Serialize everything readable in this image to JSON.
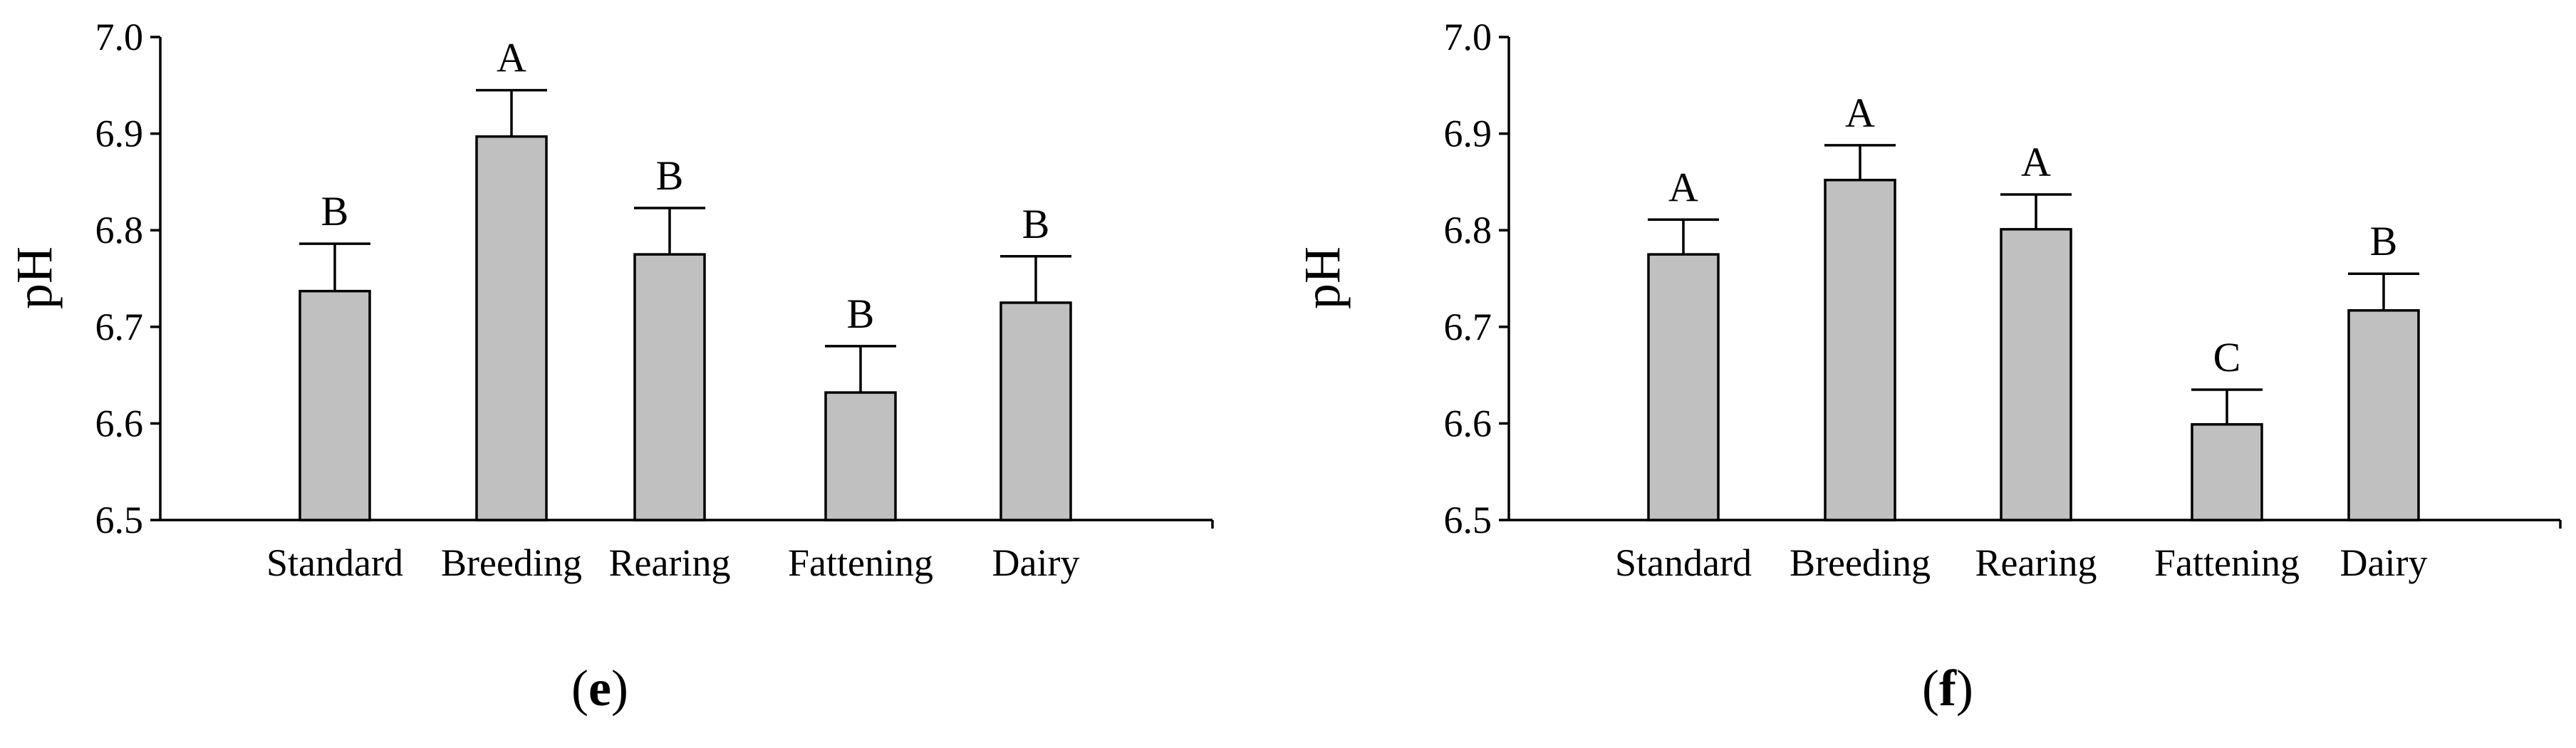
{
  "chart_data": [
    {
      "type": "bar",
      "panel": "e",
      "ylabel": "pH",
      "ylim": [
        6.5,
        7.0
      ],
      "yticks": [
        "6.5",
        "6.6",
        "6.7",
        "6.8",
        "6.9",
        "7.0"
      ],
      "categories": [
        "Standard",
        "Breeding",
        "Rearing",
        "Fattening",
        "Dairy"
      ],
      "values": [
        6.737,
        6.897,
        6.775,
        6.632,
        6.725
      ],
      "errors": [
        0.049,
        0.048,
        0.048,
        0.048,
        0.048
      ],
      "significance": [
        "B",
        "A",
        "B",
        "B",
        "B"
      ],
      "grid": false,
      "bar_color": "#c0c0c0"
    },
    {
      "type": "bar",
      "panel": "f",
      "ylabel": "pH",
      "ylim": [
        6.5,
        7.0
      ],
      "yticks": [
        "6.5",
        "6.6",
        "6.7",
        "6.8",
        "6.9",
        "7.0"
      ],
      "categories": [
        "Standard",
        "Breeding",
        "Rearing",
        "Fattening",
        "Dairy"
      ],
      "values": [
        6.775,
        6.852,
        6.801,
        6.599,
        6.717
      ],
      "errors": [
        0.036,
        0.036,
        0.036,
        0.036,
        0.038
      ],
      "significance": [
        "A",
        "A",
        "A",
        "C",
        "B"
      ],
      "grid": false,
      "bar_color": "#c0c0c0"
    }
  ]
}
